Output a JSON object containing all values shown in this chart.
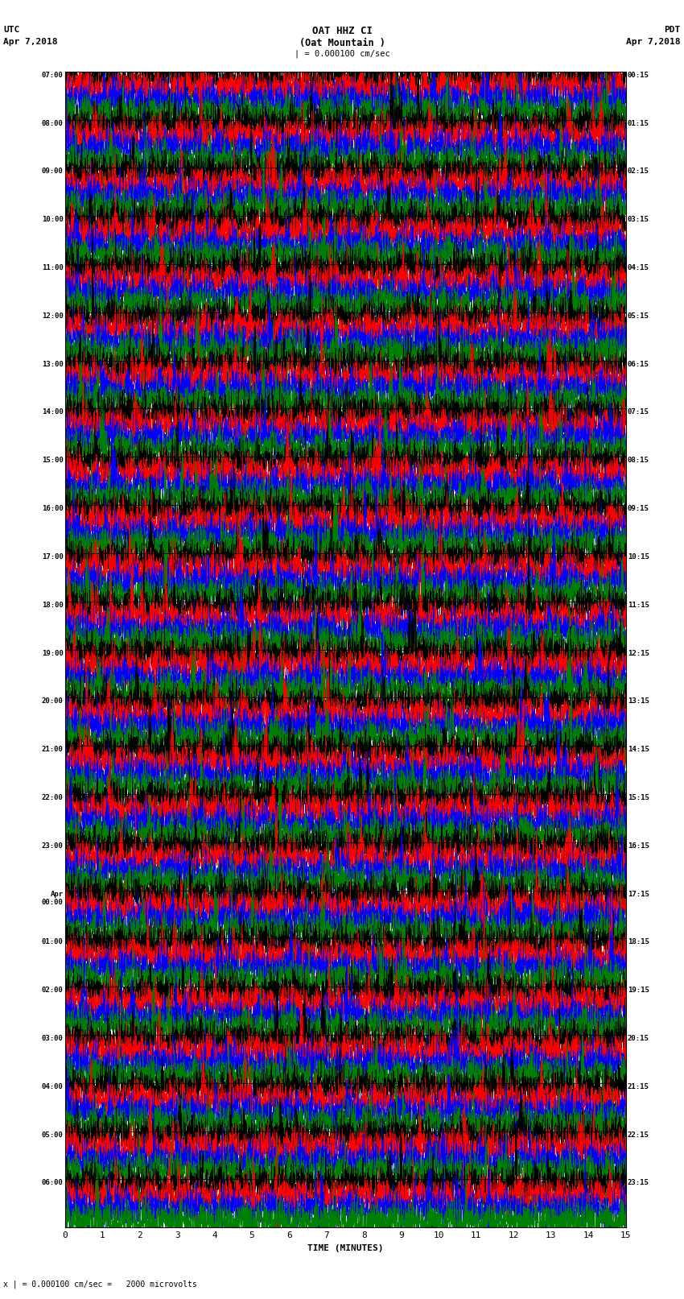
{
  "title_station": "OAT HHZ CI",
  "title_location": "(Oat Mountain )",
  "label_left_top1": "UTC",
  "label_left_top2": "Apr 7,2018",
  "label_right_top1": "PDT",
  "label_right_top2": "Apr 7,2018",
  "scale_label": "| = 0.000100 cm/sec",
  "bottom_label": "x | = 0.000100 cm/sec =   2000 microvolts",
  "xlabel": "TIME (MINUTES)",
  "time_minutes": 15,
  "n_traces": 4,
  "n_rows": 24,
  "colors": [
    "black",
    "red",
    "blue",
    "green"
  ],
  "bg_color": "#ffffff",
  "fig_width": 8.5,
  "fig_height": 16.13,
  "left_label_utc_times": [
    "07:00",
    "08:00",
    "09:00",
    "10:00",
    "11:00",
    "12:00",
    "13:00",
    "14:00",
    "15:00",
    "16:00",
    "17:00",
    "18:00",
    "19:00",
    "20:00",
    "21:00",
    "22:00",
    "23:00",
    "Apr\n00:00",
    "01:00",
    "02:00",
    "03:00",
    "04:00",
    "05:00",
    "06:00"
  ],
  "right_label_pdt_times": [
    "00:15",
    "01:15",
    "02:15",
    "03:15",
    "04:15",
    "05:15",
    "06:15",
    "07:15",
    "08:15",
    "09:15",
    "10:15",
    "11:15",
    "12:15",
    "13:15",
    "14:15",
    "15:15",
    "16:15",
    "17:15",
    "18:15",
    "19:15",
    "20:15",
    "21:15",
    "22:15",
    "23:15"
  ]
}
